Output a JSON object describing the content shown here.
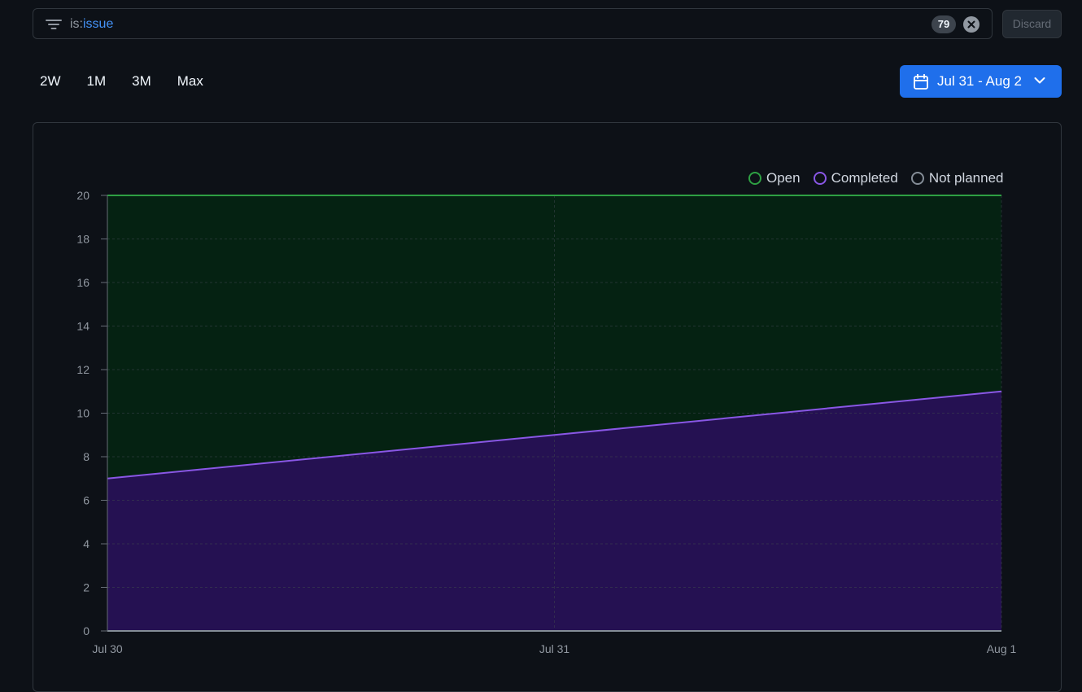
{
  "filter": {
    "qualifier": "is:",
    "value": "issue",
    "count": "79",
    "discard_label": "Discard"
  },
  "range_tabs": [
    {
      "label": "2W"
    },
    {
      "label": "1M"
    },
    {
      "label": "3M"
    },
    {
      "label": "Max"
    }
  ],
  "date_picker": {
    "label": "Jul 31 - Aug 2"
  },
  "colors": {
    "open": "#2ea043",
    "open_fill": "#052212",
    "completed": "#8957e5",
    "completed_fill": "#251152",
    "not_planned": "#848d97",
    "accent": "#1f6feb"
  },
  "chart_data": {
    "type": "area",
    "stacked": true,
    "x": [
      "Jul 30",
      "Jul 31",
      "Aug 1"
    ],
    "series": [
      {
        "name": "Not planned",
        "values": [
          0,
          0,
          0
        ]
      },
      {
        "name": "Completed",
        "values": [
          7,
          9,
          11
        ]
      },
      {
        "name": "Open",
        "values": [
          13,
          11,
          9
        ]
      }
    ],
    "ylim": [
      0,
      20
    ],
    "yticks": [
      0,
      2,
      4,
      6,
      8,
      10,
      12,
      14,
      16,
      18,
      20
    ],
    "grid": true,
    "legend_position": "top-right",
    "legend": [
      "Open",
      "Completed",
      "Not planned"
    ]
  }
}
